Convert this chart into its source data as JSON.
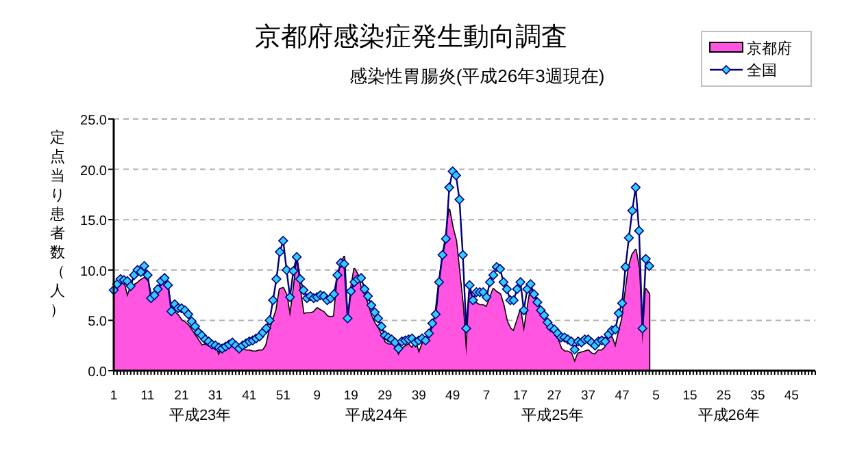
{
  "chart_data": {
    "type": "area",
    "title": "京都府感染症発生動向調査",
    "subtitle": "感染性胃腸炎(平成26年3週現在)",
    "ylabel": "定点当り患者数（人）",
    "annotations": [
      "平成23年",
      "平成24年",
      "平成25年",
      "平成26年"
    ],
    "categories": [
      "1",
      null,
      null,
      null,
      null,
      null,
      null,
      null,
      null,
      null,
      "11",
      null,
      null,
      null,
      null,
      null,
      null,
      null,
      null,
      null,
      "21",
      null,
      null,
      null,
      null,
      null,
      null,
      null,
      null,
      null,
      "31",
      null,
      null,
      null,
      null,
      null,
      null,
      null,
      null,
      null,
      "41",
      null,
      null,
      null,
      null,
      null,
      null,
      null,
      null,
      null,
      "51",
      null,
      null,
      null,
      null,
      null,
      null,
      null,
      null,
      null,
      "9",
      null,
      null,
      null,
      null,
      null,
      null,
      null,
      null,
      null,
      "19",
      null,
      null,
      null,
      null,
      null,
      null,
      null,
      null,
      null,
      "29",
      null,
      null,
      null,
      null,
      null,
      null,
      null,
      null,
      null,
      "39",
      null,
      null,
      null,
      null,
      null,
      null,
      null,
      null,
      null,
      "49",
      null,
      null,
      null,
      null,
      null,
      null,
      null,
      null,
      null,
      "7",
      null,
      null,
      null,
      null,
      null,
      null,
      null,
      null,
      null,
      "17",
      null,
      null,
      null,
      null,
      null,
      null,
      null,
      null,
      null,
      "27",
      null,
      null,
      null,
      null,
      null,
      null,
      null,
      null,
      null,
      "37",
      null,
      null,
      null,
      null,
      null,
      null,
      null,
      null,
      null,
      "47",
      null,
      null,
      null,
      null,
      null,
      null,
      null,
      null,
      null,
      "5",
      null,
      null,
      null,
      null,
      null,
      null,
      null,
      null,
      null,
      "15",
      null,
      null,
      null,
      null,
      null,
      null,
      null,
      null,
      null,
      "25",
      null,
      null,
      null,
      null,
      null,
      null,
      null,
      null,
      null,
      "35",
      null,
      null,
      null,
      null,
      null,
      null,
      null,
      null,
      null,
      "45",
      null,
      null,
      null,
      null,
      null,
      null,
      null
    ],
    "series": [
      {
        "name": "京都府",
        "type": "area",
        "color": "#ff55e0",
        "values": [
          7.9,
          8.5,
          8.6,
          8.7,
          7.3,
          8.3,
          8.5,
          8.7,
          9.0,
          9.2,
          8.9,
          7.5,
          7.3,
          7.8,
          8.5,
          8.9,
          8.3,
          6.0,
          5.8,
          5.5,
          5.0,
          4.8,
          4.5,
          4.0,
          3.5,
          3.0,
          2.5,
          2.6,
          2.4,
          2.5,
          2.3,
          1.5,
          2.2,
          2.0,
          2.4,
          2.3,
          2.5,
          2.3,
          2.2,
          2.0,
          2.0,
          1.9,
          1.9,
          2.0,
          2.0,
          2.5,
          4.0,
          5.0,
          6.0,
          8.1,
          8.2,
          7.5,
          5.3,
          7.8,
          10.8,
          7.9,
          5.6,
          5.7,
          5.7,
          5.8,
          6.2,
          6.0,
          5.8,
          5.4,
          5.3,
          5.4,
          9.0,
          10.6,
          11.3,
          4.6,
          8.1,
          10.1,
          9.5,
          8.1,
          7.4,
          6.5,
          5.4,
          4.7,
          4.2,
          3.5,
          2.8,
          2.6,
          2.6,
          2.4,
          1.5,
          2.2,
          2.4,
          2.6,
          2.2,
          2.9,
          1.7,
          2.6,
          3.1,
          3.3,
          4.2,
          5.8,
          8.8,
          11.3,
          13.3,
          16.0,
          14.2,
          12.9,
          9.7,
          6.5,
          1.5,
          7.8,
          7.0,
          6.7,
          6.5,
          6.5,
          6.3,
          7.2,
          8.1,
          7.8,
          7.6,
          6.5,
          4.9,
          4.2,
          3.9,
          4.9,
          6.0,
          3.8,
          6.0,
          8.1,
          7.6,
          7.0,
          6.0,
          5.2,
          4.7,
          4.0,
          3.5,
          3.1,
          2.2,
          1.9,
          1.9,
          1.7,
          0.8,
          1.7,
          1.8,
          1.9,
          2.0,
          1.7,
          1.6,
          2.0,
          2.0,
          2.3,
          3.3,
          3.3,
          2.3,
          3.8,
          5.1,
          7.8,
          10.3,
          11.5,
          12.0,
          10.1,
          2.6,
          8.1,
          7.6,
          null,
          null,
          null,
          null,
          null,
          null,
          null,
          null,
          null,
          null,
          null,
          null,
          null,
          null,
          null,
          null,
          null,
          null,
          null,
          null,
          null,
          null,
          null,
          null,
          null,
          null,
          null,
          null,
          null,
          null,
          null,
          null,
          null,
          null,
          null,
          null,
          null,
          null,
          null,
          null,
          null,
          null,
          null,
          null,
          null,
          null,
          null,
          null,
          null
        ]
      },
      {
        "name": "全国",
        "type": "line",
        "color": "#000080",
        "marker": "diamond",
        "values": [
          8.0,
          8.6,
          9.1,
          9.0,
          8.9,
          8.4,
          9.5,
          10.0,
          9.8,
          10.4,
          9.5,
          7.2,
          7.5,
          8.1,
          8.9,
          9.2,
          8.5,
          5.9,
          6.6,
          6.2,
          6.2,
          6.0,
          5.6,
          4.9,
          4.4,
          3.8,
          3.5,
          3.1,
          2.9,
          2.6,
          2.5,
          2.3,
          2.2,
          2.4,
          2.6,
          2.8,
          2.5,
          2.2,
          2.5,
          2.7,
          2.9,
          3.0,
          3.2,
          3.4,
          3.8,
          4.2,
          5.0,
          7.0,
          9.1,
          11.8,
          12.9,
          10.0,
          7.3,
          9.9,
          11.3,
          9.1,
          8.0,
          7.2,
          7.4,
          7.2,
          7.3,
          7.5,
          7.4,
          7.0,
          7.2,
          7.6,
          9.5,
          10.7,
          10.6,
          5.2,
          7.9,
          8.8,
          9.1,
          9.2,
          8.1,
          7.4,
          6.5,
          5.8,
          5.2,
          4.4,
          3.5,
          3.3,
          3.1,
          2.8,
          2.2,
          2.9,
          3.0,
          3.1,
          3.2,
          2.8,
          3.0,
          3.2,
          3.0,
          3.7,
          4.7,
          5.6,
          8.8,
          11.5,
          13.1,
          18.2,
          19.8,
          19.4,
          17.0,
          11.5,
          4.2,
          8.5,
          7.0,
          7.8,
          7.8,
          7.8,
          7.3,
          8.8,
          9.5,
          10.3,
          10.1,
          8.8,
          8.1,
          7.0,
          7.0,
          8.1,
          8.8,
          6.0,
          8.1,
          8.6,
          7.6,
          6.8,
          6.0,
          5.5,
          4.8,
          4.3,
          4.1,
          3.7,
          3.3,
          3.3,
          3.1,
          2.9,
          2.1,
          2.9,
          2.8,
          3.1,
          3.1,
          2.8,
          2.5,
          2.9,
          3.0,
          2.9,
          3.6,
          4.0,
          4.1,
          5.7,
          6.7,
          10.3,
          13.2,
          15.9,
          18.2,
          13.9,
          4.2,
          11.1,
          10.4,
          null,
          null,
          null,
          null,
          null,
          null,
          null,
          null,
          null,
          null,
          null,
          null,
          null,
          null,
          null,
          null,
          null,
          null,
          null,
          null,
          null,
          null,
          null,
          null,
          null,
          null,
          null,
          null,
          null,
          null,
          null,
          null,
          null,
          null,
          null,
          null,
          null,
          null,
          null,
          null,
          null,
          null,
          null,
          null,
          null,
          null,
          null,
          null,
          null
        ]
      }
    ],
    "ylim": [
      0,
      25
    ],
    "yticks": [
      {
        "value": 0,
        "label": "0.0"
      },
      {
        "value": 5,
        "label": "5.0"
      },
      {
        "value": 10,
        "label": "10.0"
      },
      {
        "value": 15,
        "label": "15.0"
      },
      {
        "value": 20,
        "label": "20.0"
      },
      {
        "value": 25,
        "label": "25.0"
      }
    ],
    "grid": "y",
    "legend": "top right"
  }
}
